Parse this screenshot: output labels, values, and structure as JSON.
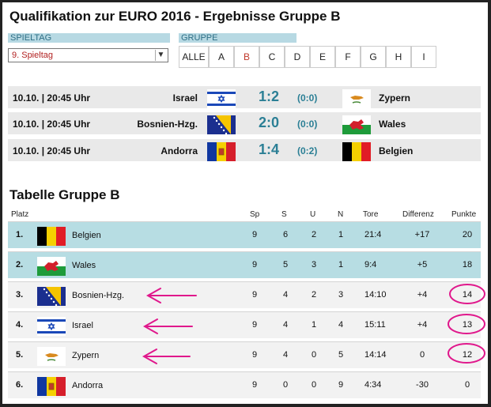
{
  "title": "Qualifikation zur EURO 2016 - Ergebnisse Gruppe B",
  "filters": {
    "spieltag_label": "SPIELTAG",
    "spieltag_value": "9. Spieltag",
    "gruppe_label": "GRUPPE",
    "groups": [
      "ALLE",
      "A",
      "B",
      "C",
      "D",
      "E",
      "F",
      "G",
      "H",
      "I"
    ],
    "active_group": "B"
  },
  "matches": [
    {
      "date": "10.10. | 20:45 Uhr",
      "home": "Israel",
      "home_flag": "israel-flag",
      "score": "1:2",
      "half": "(0:0)",
      "away": "Zypern",
      "away_flag": "cyprus-flag"
    },
    {
      "date": "10.10. | 20:45 Uhr",
      "home": "Bosnien-Hzg.",
      "home_flag": "bosnia-flag",
      "score": "2:0",
      "half": "(0:0)",
      "away": "Wales",
      "away_flag": "wales-flag"
    },
    {
      "date": "10.10. | 20:45 Uhr",
      "home": "Andorra",
      "home_flag": "andorra-flag",
      "score": "1:4",
      "half": "(0:2)",
      "away": "Belgien",
      "away_flag": "belgium-flag"
    }
  ],
  "table": {
    "title": "Tabelle Gruppe B",
    "headers": {
      "platz": "Platz",
      "sp": "Sp",
      "s": "S",
      "u": "U",
      "n": "N",
      "tore": "Tore",
      "diff": "Differenz",
      "pkt": "Punkte"
    },
    "rows": [
      {
        "rank": "1.",
        "flag": "belgium-flag",
        "team": "Belgien",
        "sp": "9",
        "s": "6",
        "u": "2",
        "n": "1",
        "tore": "21:4",
        "diff": "+17",
        "pkt": "20"
      },
      {
        "rank": "2.",
        "flag": "wales-flag",
        "team": "Wales",
        "sp": "9",
        "s": "5",
        "u": "3",
        "n": "1",
        "tore": "9:4",
        "diff": "+5",
        "pkt": "18"
      },
      {
        "rank": "3.",
        "flag": "bosnia-flag",
        "team": "Bosnien-Hzg.",
        "sp": "9",
        "s": "4",
        "u": "2",
        "n": "3",
        "tore": "14:10",
        "diff": "+4",
        "pkt": "14"
      },
      {
        "rank": "4.",
        "flag": "israel-flag",
        "team": "Israel",
        "sp": "9",
        "s": "4",
        "u": "1",
        "n": "4",
        "tore": "15:11",
        "diff": "+4",
        "pkt": "13"
      },
      {
        "rank": "5.",
        "flag": "cyprus-flag",
        "team": "Zypern",
        "sp": "9",
        "s": "4",
        "u": "0",
        "n": "5",
        "tore": "14:14",
        "diff": "0",
        "pkt": "12"
      },
      {
        "rank": "6.",
        "flag": "andorra-flag",
        "team": "Andorra",
        "sp": "9",
        "s": "0",
        "u": "0",
        "n": "9",
        "tore": "4:34",
        "diff": "-30",
        "pkt": "0"
      }
    ]
  },
  "colors": {
    "accent": "#2b7f95",
    "highlight": "#b7dde3",
    "annotation": "#e0188c",
    "active_group": "#c0392b"
  }
}
